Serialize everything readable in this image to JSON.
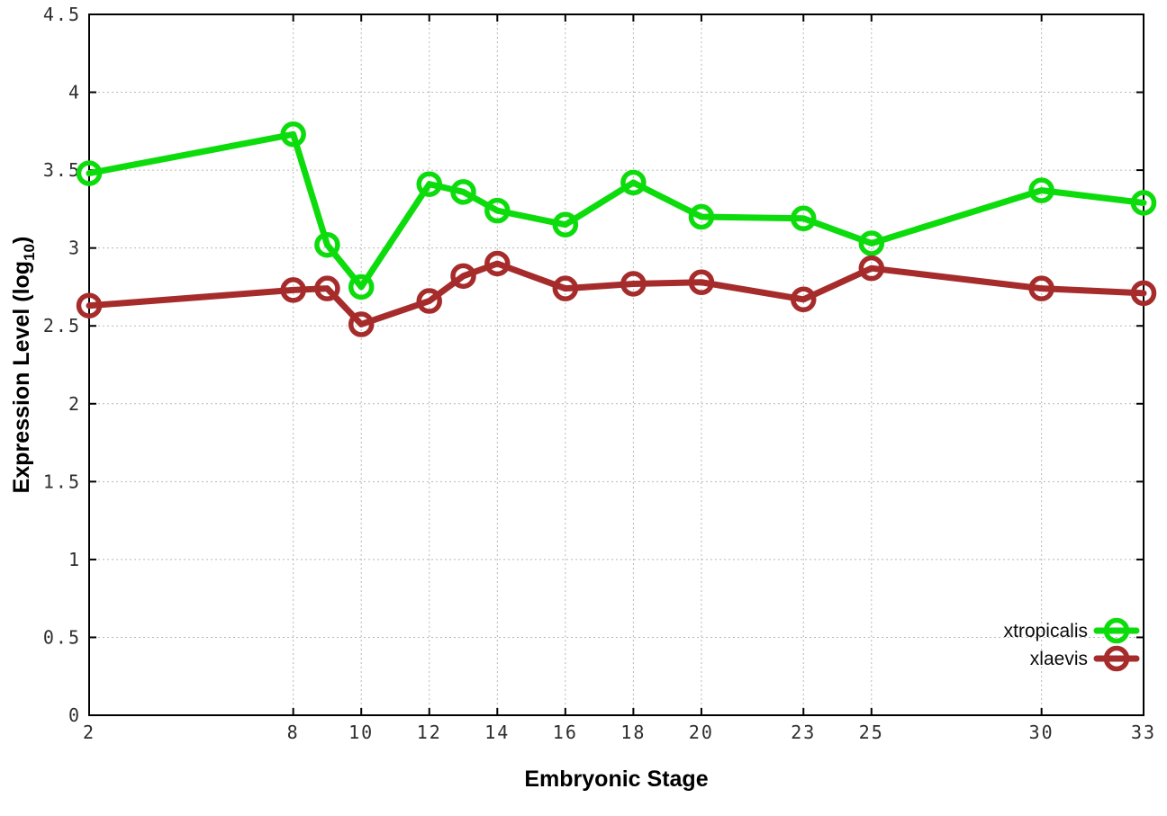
{
  "chart_data": {
    "type": "line",
    "title": "",
    "xlabel": "Embryonic Stage",
    "ylabel": {
      "prefix": "Expression Level (log",
      "sub": "10",
      "suffix": ")"
    },
    "x": [
      2,
      8,
      9,
      10,
      12,
      13,
      14,
      16,
      18,
      20,
      23,
      25,
      30,
      33
    ],
    "x_tick_labels": [
      "2",
      "8",
      "10",
      "12",
      "14",
      "16",
      "18",
      "20",
      "23",
      "25",
      "30",
      "33"
    ],
    "x_ticks": [
      2,
      8,
      10,
      12,
      14,
      16,
      18,
      20,
      23,
      25,
      30,
      33
    ],
    "y_tick_labels": [
      "0",
      "0.5",
      "1",
      "1.5",
      "2",
      "2.5",
      "3",
      "3.5",
      "4",
      "4.5"
    ],
    "y_ticks": [
      0,
      0.5,
      1,
      1.5,
      2,
      2.5,
      3,
      3.5,
      4,
      4.5
    ],
    "xlim": [
      2,
      33
    ],
    "ylim": [
      0,
      4.5
    ],
    "grid": true,
    "legend_position": "bottom-right",
    "series": [
      {
        "name": "xtropicalis",
        "color": "#0cdc0c",
        "marker": "open-circle",
        "values": [
          3.48,
          3.73,
          3.02,
          2.75,
          3.41,
          3.36,
          3.24,
          3.15,
          3.42,
          3.2,
          3.19,
          3.03,
          3.37,
          3.29
        ]
      },
      {
        "name": "xlaevis",
        "color": "#a62c2c",
        "marker": "open-circle",
        "values": [
          2.63,
          2.73,
          2.74,
          2.51,
          2.66,
          2.82,
          2.9,
          2.74,
          2.77,
          2.78,
          2.67,
          2.87,
          2.74,
          2.71
        ]
      }
    ]
  },
  "styles": {
    "background": "#ffffff",
    "grid_color": "#b8b8b8",
    "axis_color": "#000000",
    "tick_label_color": "#2e2e2e"
  }
}
